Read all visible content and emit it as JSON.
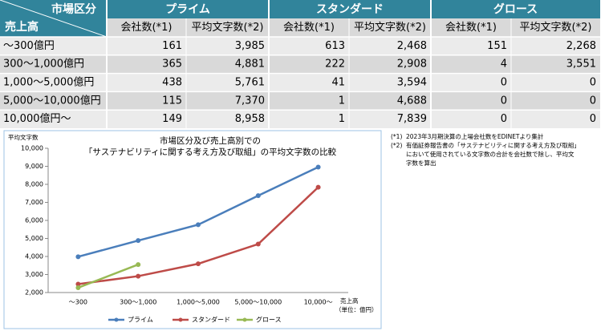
{
  "table": {
    "corner_top": "市場区分",
    "corner_bottom": "売上高",
    "groups": [
      "プライム",
      "スタンダード",
      "グロース"
    ],
    "columns": [
      "会社数(*1)",
      "平均文字数(*2)",
      "会社数(*1)",
      "平均文字数(*2)",
      "会社数(*1)",
      "平均文字数(*2)"
    ],
    "rows": [
      [
        "～300億円",
        "161",
        "3,985",
        "613",
        "2,468",
        "151",
        "2,268"
      ],
      [
        "300～1,000億円",
        "365",
        "4,881",
        "222",
        "2,908",
        "4",
        "3,551"
      ],
      [
        "1,000～5,000億円",
        "438",
        "5,761",
        "41",
        "3,594",
        "0",
        "0"
      ],
      [
        "5,000～10,000億円",
        "115",
        "7,370",
        "1",
        "4,688",
        "0",
        "0"
      ],
      [
        "10,000億円～",
        "149",
        "8,958",
        "1",
        "7,839",
        "0",
        "0"
      ]
    ]
  },
  "chart_data": {
    "type": "line",
    "title": [
      "市場区分及び売上高別での",
      "「サステナビリティに関する考え方及び取組」の平均文字数の比較"
    ],
    "y_label": "平均文字数",
    "x_label": "売上高",
    "x_unit": "（単位：億円）",
    "categories": [
      "～300",
      "300～1,000",
      "1,000～5,000",
      "5,000～10,000",
      "10,000～"
    ],
    "series": [
      {
        "name": "プライム",
        "color": "#4a7ebb",
        "values": [
          3985,
          4881,
          5761,
          7370,
          8958
        ]
      },
      {
        "name": "スタンダード",
        "color": "#be4b48",
        "values": [
          2468,
          2908,
          3594,
          4688,
          7839
        ]
      },
      {
        "name": "グロース",
        "color": "#98b954",
        "values": [
          2268,
          3551,
          null,
          null,
          null
        ]
      }
    ],
    "ylim": [
      2000,
      10000
    ],
    "yticks": [
      {
        "value": 2000,
        "label": "2,000"
      },
      {
        "value": 3000,
        "label": "3,000"
      },
      {
        "value": 4000,
        "label": "4,000"
      },
      {
        "value": 5000,
        "label": "5,000"
      },
      {
        "value": 6000,
        "label": "6,000"
      },
      {
        "value": 7000,
        "label": "7,000"
      },
      {
        "value": 8000,
        "label": "8,000"
      },
      {
        "value": 9000,
        "label": "9,000"
      },
      {
        "value": 10000,
        "label": "10,000"
      }
    ]
  },
  "notes": [
    {
      "mark": "(*1)",
      "lines": [
        "2023年3月期決算の上場会社数をEDINETより集計"
      ]
    },
    {
      "mark": "(*2)",
      "lines": [
        "有価証券報告書の「サステナビリティに関する考え方及び取組」",
        "において使用されている文字数の合計を会社数で除し、平均文",
        "字数を算出"
      ]
    }
  ]
}
